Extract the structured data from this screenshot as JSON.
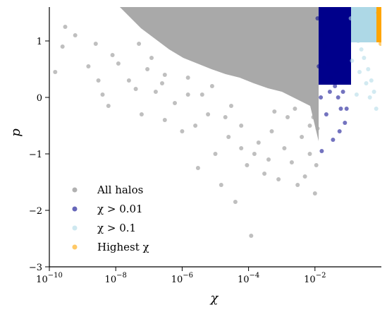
{
  "chart_data": {
    "type": "scatter",
    "xlabel": "χ",
    "ylabel": "p",
    "xscale": "log",
    "xlim": [
      1e-10,
      1
    ],
    "ylim": [
      -3,
      1.6
    ],
    "grid": false,
    "legend_placement": "lower-left",
    "x_ticks": [
      {
        "base": "10",
        "exp": "−10",
        "value": 1e-10
      },
      {
        "base": "10",
        "exp": "−8",
        "value": 1e-08
      },
      {
        "base": "10",
        "exp": "−6",
        "value": 1e-06
      },
      {
        "base": "10",
        "exp": "−4",
        "value": 0.0001
      },
      {
        "base": "10",
        "exp": "−2",
        "value": 0.01
      }
    ],
    "y_ticks": [
      {
        "label": "1",
        "value": 1
      },
      {
        "label": "0",
        "value": 0
      },
      {
        "label": "−1",
        "value": -1
      },
      {
        "label": "−2",
        "value": -2
      },
      {
        "label": "−3",
        "value": -3
      }
    ],
    "series": [
      {
        "name": "All halos",
        "color": "#a9a9a9",
        "points": [
          [
            1.5e-10,
            0.45
          ],
          [
            2.5e-10,
            0.9
          ],
          [
            3e-10,
            1.25
          ],
          [
            6e-10,
            1.1
          ],
          [
            1.5e-09,
            0.55
          ],
          [
            2.5e-09,
            0.95
          ],
          [
            4e-09,
            0.05
          ],
          [
            6e-09,
            -0.15
          ],
          [
            1.2e-08,
            0.6
          ],
          [
            2.5e-08,
            0.3
          ],
          [
            4e-08,
            0.15
          ],
          [
            6e-08,
            -0.3
          ],
          [
            9e-08,
            0.5
          ],
          [
            1.6e-07,
            0.1
          ],
          [
            2.5e-07,
            0.25
          ],
          [
            3e-07,
            -0.4
          ],
          [
            6e-07,
            -0.1
          ],
          [
            1e-06,
            -0.6
          ],
          [
            1.5e-06,
            0.05
          ],
          [
            2.5e-06,
            -0.5
          ],
          [
            3e-06,
            -1.25
          ],
          [
            6e-06,
            -0.3
          ],
          [
            1e-05,
            -1.0
          ],
          [
            1.5e-05,
            -1.55
          ],
          [
            2.5e-05,
            -0.7
          ],
          [
            4e-05,
            -1.85
          ],
          [
            6e-05,
            -0.9
          ],
          [
            9e-05,
            -1.2
          ],
          [
            0.00012,
            -2.45
          ],
          [
            0.0002,
            -0.8
          ],
          [
            0.0003,
            -1.35
          ],
          [
            0.0005,
            -0.6
          ],
          [
            0.0008,
            -1.45
          ],
          [
            0.0012,
            -0.9
          ],
          [
            0.002,
            -1.15
          ],
          [
            0.003,
            -1.55
          ],
          [
            0.004,
            -0.7
          ],
          [
            0.005,
            -1.4
          ],
          [
            0.007,
            -1.0
          ],
          [
            0.01,
            -1.7
          ],
          [
            0.012,
            -0.55
          ],
          [
            0.0015,
            -0.35
          ],
          [
            0.0025,
            -0.2
          ],
          [
            0.0006,
            -0.25
          ],
          [
            3e-05,
            -0.15
          ],
          [
            8e-06,
            0.2
          ],
          [
            3e-09,
            0.3
          ],
          [
            8e-09,
            0.75
          ],
          [
            5e-08,
            0.95
          ],
          [
            1.2e-07,
            0.7
          ],
          [
            3e-07,
            0.4
          ],
          [
            1.5e-06,
            0.35
          ],
          [
            4e-06,
            0.05
          ],
          [
            2e-05,
            -0.35
          ],
          [
            6e-05,
            -0.5
          ],
          [
            0.00015,
            -1.0
          ],
          [
            0.0004,
            -1.1
          ],
          [
            0.007,
            -0.5
          ],
          [
            0.009,
            -0.35
          ],
          [
            0.011,
            -1.2
          ]
        ]
      },
      {
        "name": "χ > 0.01",
        "color": "#00008b",
        "points": [
          [
            0.012,
            1.4
          ],
          [
            0.015,
            1.1
          ],
          [
            0.02,
            0.9
          ],
          [
            0.025,
            0.6
          ],
          [
            0.03,
            0.35
          ],
          [
            0.04,
            0.2
          ],
          [
            0.05,
            0.0
          ],
          [
            0.06,
            -0.2
          ],
          [
            0.08,
            -0.45
          ],
          [
            0.015,
            0.0
          ],
          [
            0.022,
            -0.3
          ],
          [
            0.016,
            -0.95
          ],
          [
            0.035,
            -0.75
          ],
          [
            0.018,
            0.3
          ],
          [
            0.045,
            0.45
          ],
          [
            0.07,
            0.1
          ],
          [
            0.09,
            -0.2
          ],
          [
            0.013,
            0.55
          ],
          [
            0.028,
            0.1
          ],
          [
            0.055,
            -0.6
          ]
        ]
      },
      {
        "name": "χ > 0.1",
        "color": "#add8e6",
        "points": [
          [
            0.12,
            1.4
          ],
          [
            0.15,
            1.2
          ],
          [
            0.2,
            1.0
          ],
          [
            0.25,
            0.85
          ],
          [
            0.3,
            0.7
          ],
          [
            0.4,
            0.5
          ],
          [
            0.5,
            0.3
          ],
          [
            0.6,
            0.1
          ],
          [
            0.13,
            0.65
          ],
          [
            0.22,
            0.45
          ],
          [
            0.35,
            0.25
          ],
          [
            0.18,
            0.05
          ],
          [
            0.45,
            0.0
          ],
          [
            0.7,
            -0.2
          ]
        ]
      },
      {
        "name": "Highest χ",
        "color": "#ffa500",
        "points": [
          [
            0.8,
            1.5
          ],
          [
            0.85,
            1.3
          ],
          [
            0.9,
            1.1
          ],
          [
            0.95,
            0.95
          ],
          [
            0.88,
            1.45
          ]
        ]
      }
    ]
  }
}
